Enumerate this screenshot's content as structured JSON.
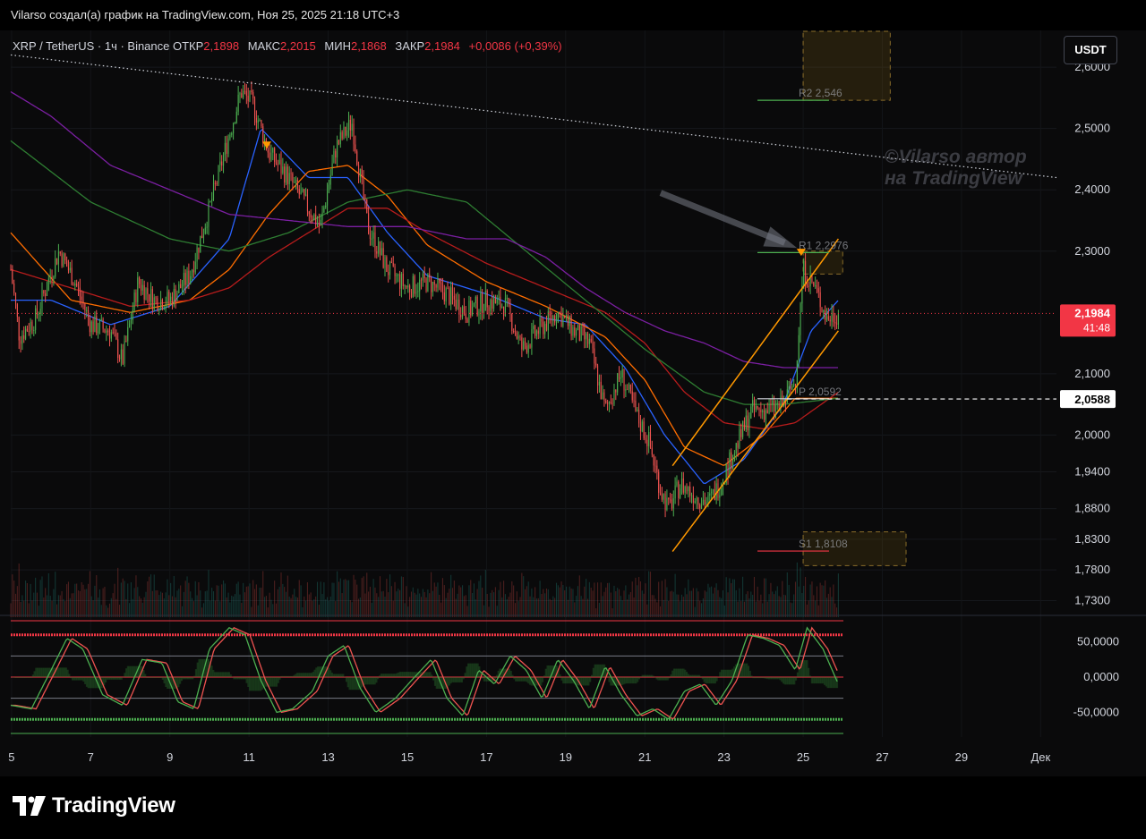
{
  "header": {
    "title": "Vilarso создал(а) график на TradingView.com, Ноя 25, 2025 21:18 UTC+3"
  },
  "legend": {
    "symbol": "XRP / TetherUS · 1ч · Binance",
    "open_label": "ОТКР",
    "open_value": "2,1898",
    "high_label": "МАКС",
    "high_value": "2,2015",
    "low_label": "МИН",
    "low_value": "2,1868",
    "close_label": "ЗАКР",
    "close_value": "2,1984",
    "change": "+0,0086 (+0,39%)"
  },
  "currency_button": "USDT",
  "watermark": {
    "line1": "©Vilarso автор",
    "line2": "на TradingView"
  },
  "footer": {
    "logo_text": "TradingView"
  },
  "colors": {
    "up": "#26a69a",
    "up_candle": "#4caf50",
    "down": "#ef5350",
    "ema_fast": "#2962ff",
    "ema_orange": "#ff6d00",
    "ema_red": "#b71c1c",
    "ema_green": "#1b5e20",
    "ema_purple": "#7b1fa2",
    "channel": "#ff9800",
    "price_tag": "#f23645",
    "pivot_box": "#3a2e12"
  },
  "chart_data": {
    "type": "candlestick",
    "symbol": "XRP / TetherUS",
    "timeframe": "1ч",
    "exchange": "Binance",
    "price_axis": {
      "ylim": [
        1.7,
        2.66
      ],
      "ticks": [
        "2,6000",
        "2,5000",
        "2,4000",
        "2,3000",
        "2,1000",
        "2,0000",
        "1,9400",
        "1,8800",
        "1,8300",
        "1,7800",
        "1,7300"
      ],
      "tick_values": [
        2.6,
        2.5,
        2.4,
        2.3,
        2.1,
        2.0,
        1.94,
        1.88,
        1.83,
        1.78,
        1.73
      ]
    },
    "time_axis": {
      "ticks": [
        "5",
        "7",
        "9",
        "11",
        "13",
        "15",
        "17",
        "19",
        "21",
        "23",
        "25",
        "27",
        "29",
        "Дек"
      ],
      "tick_days": [
        5,
        7,
        9,
        11,
        13,
        15,
        17,
        19,
        21,
        23,
        25,
        27,
        29,
        31
      ],
      "xlim_days": [
        4.98,
        31.4
      ],
      "last_bar_day": 25.89
    },
    "close_path": {
      "day": [
        4.98,
        5.2,
        5.6,
        6.2,
        6.6,
        7.0,
        7.5,
        7.8,
        8.2,
        8.6,
        9.0,
        9.5,
        10.0,
        10.5,
        10.8,
        11.1,
        11.5,
        12.0,
        12.4,
        12.8,
        13.2,
        13.6,
        14.0,
        14.5,
        15.0,
        15.5,
        16.0,
        16.5,
        17.0,
        17.5,
        17.9,
        18.3,
        18.8,
        19.2,
        19.6,
        20.0,
        20.4,
        20.8,
        21.1,
        21.4,
        21.6,
        21.9,
        22.3,
        22.6,
        22.9,
        23.3,
        23.7,
        24.1,
        24.5,
        24.8,
        25.0,
        25.3,
        25.6,
        25.89
      ],
      "close": [
        2.27,
        2.16,
        2.19,
        2.3,
        2.25,
        2.18,
        2.17,
        2.12,
        2.25,
        2.22,
        2.22,
        2.26,
        2.37,
        2.49,
        2.56,
        2.54,
        2.46,
        2.42,
        2.38,
        2.34,
        2.47,
        2.51,
        2.34,
        2.27,
        2.24,
        2.25,
        2.23,
        2.2,
        2.22,
        2.21,
        2.14,
        2.17,
        2.2,
        2.17,
        2.15,
        2.04,
        2.1,
        2.03,
        1.99,
        1.91,
        1.88,
        1.92,
        1.9,
        1.89,
        1.92,
        1.98,
        2.04,
        2.04,
        2.05,
        2.09,
        2.27,
        2.24,
        2.19,
        2.1984
      ]
    },
    "current_price": {
      "value": 2.1984,
      "label": "2,1984",
      "countdown": "41:48"
    },
    "marked_level": {
      "value": 2.0588,
      "label": "2,0588"
    },
    "pivots": [
      {
        "name": "R2",
        "value": 2.546,
        "label": "R2 2,546"
      },
      {
        "name": "R1",
        "value": 2.2976,
        "label": "R1 2,2976"
      },
      {
        "name": "P",
        "value": 2.0592,
        "label": "P 2,0592"
      },
      {
        "name": "S1",
        "value": 1.8108,
        "label": "S1 1,8108"
      }
    ],
    "ema_lines": [
      {
        "color": "#2962ff",
        "day": [
          4.98,
          6,
          7.5,
          9,
          10.5,
          11.3,
          12.5,
          13.5,
          14.5,
          15.5,
          17,
          18.5,
          19.5,
          20.5,
          21.5,
          22.5,
          23.5,
          24.5,
          25.2,
          25.89
        ],
        "values": [
          2.22,
          2.22,
          2.18,
          2.21,
          2.32,
          2.5,
          2.42,
          2.42,
          2.33,
          2.26,
          2.23,
          2.19,
          2.18,
          2.11,
          2.0,
          1.92,
          1.96,
          2.05,
          2.17,
          2.22
        ]
      },
      {
        "color": "#ff6d00",
        "day": [
          4.98,
          6.5,
          8,
          9.5,
          10.5,
          11.5,
          12.5,
          13.5,
          14.5,
          15.5,
          17,
          18.5,
          20,
          21,
          22,
          23,
          24,
          24.8,
          25.89
        ],
        "values": [
          2.33,
          2.22,
          2.2,
          2.22,
          2.27,
          2.36,
          2.43,
          2.44,
          2.39,
          2.31,
          2.25,
          2.21,
          2.16,
          2.09,
          1.98,
          1.95,
          2.0,
          2.06,
          2.06
        ]
      },
      {
        "color": "#b71c1c",
        "day": [
          4.98,
          6.5,
          8,
          9.5,
          10.5,
          11.5,
          12.5,
          13.5,
          14.5,
          15.5,
          17,
          18.5,
          20,
          21,
          22,
          23,
          24,
          24.8,
          25.89
        ],
        "values": [
          2.27,
          2.24,
          2.21,
          2.22,
          2.24,
          2.29,
          2.33,
          2.37,
          2.37,
          2.33,
          2.28,
          2.24,
          2.2,
          2.15,
          2.07,
          2.02,
          2.01,
          2.02,
          2.07
        ]
      },
      {
        "color": "#2e7d32",
        "day": [
          4.98,
          7,
          9,
          10.5,
          12,
          13.5,
          15,
          16.5,
          18,
          19.5,
          21,
          22.5,
          23.5,
          24.5,
          25.89
        ],
        "values": [
          2.48,
          2.38,
          2.32,
          2.3,
          2.33,
          2.38,
          2.4,
          2.38,
          2.3,
          2.22,
          2.14,
          2.07,
          2.05,
          2.05,
          2.06
        ]
      },
      {
        "color": "#7b1fa2",
        "day": [
          4.98,
          6,
          7.5,
          9,
          10.5,
          12,
          13.5,
          15,
          16.5,
          17.5,
          18.5,
          19.5,
          20.5,
          21.5,
          22.5,
          23.5,
          24.5,
          25.2,
          25.89
        ],
        "values": [
          2.56,
          2.52,
          2.44,
          2.4,
          2.36,
          2.35,
          2.34,
          2.34,
          2.32,
          2.32,
          2.29,
          2.24,
          2.2,
          2.17,
          2.15,
          2.12,
          2.11,
          2.11,
          2.11
        ]
      }
    ],
    "channel": {
      "upper": {
        "day": [
          21.7,
          25.89
        ],
        "values": [
          1.95,
          2.32
        ]
      },
      "lower": {
        "day": [
          21.7,
          25.89
        ],
        "values": [
          1.81,
          2.17
        ]
      }
    },
    "trendline": {
      "day": [
        4.98,
        31.4
      ],
      "values": [
        2.62,
        2.42
      ]
    },
    "oscillator": {
      "ylim": [
        -85,
        85
      ],
      "ticks": [
        "50,0000",
        "0,0000",
        "-50,0000"
      ],
      "tick_values": [
        50,
        0,
        -50
      ],
      "upper_band": 60,
      "lower_band": -60,
      "outer_top": 80,
      "outer_bottom": -80,
      "inner_levels": [
        30,
        -30
      ],
      "day": [
        4.98,
        5.5,
        6.0,
        6.4,
        6.8,
        7.3,
        7.8,
        8.3,
        8.8,
        9.2,
        9.6,
        10.0,
        10.5,
        10.9,
        11.3,
        11.7,
        12.1,
        12.6,
        13.0,
        13.4,
        13.8,
        14.2,
        14.7,
        15.1,
        15.6,
        16.0,
        16.4,
        16.8,
        17.2,
        17.6,
        18.0,
        18.4,
        18.8,
        19.2,
        19.6,
        20.0,
        20.4,
        20.8,
        21.2,
        21.6,
        22.0,
        22.4,
        22.8,
        23.2,
        23.6,
        24.0,
        24.4,
        24.8,
        25.1,
        25.5,
        25.89
      ],
      "values": [
        -40,
        -45,
        10,
        55,
        40,
        -25,
        -40,
        25,
        20,
        -35,
        -45,
        40,
        70,
        60,
        -5,
        -50,
        -45,
        -20,
        30,
        45,
        -15,
        -50,
        -30,
        -5,
        25,
        -30,
        -55,
        10,
        -10,
        30,
        10,
        -30,
        25,
        -5,
        -45,
        15,
        -25,
        -55,
        -45,
        -60,
        -20,
        -10,
        -40,
        -5,
        60,
        55,
        45,
        10,
        70,
        40,
        -10
      ]
    }
  }
}
